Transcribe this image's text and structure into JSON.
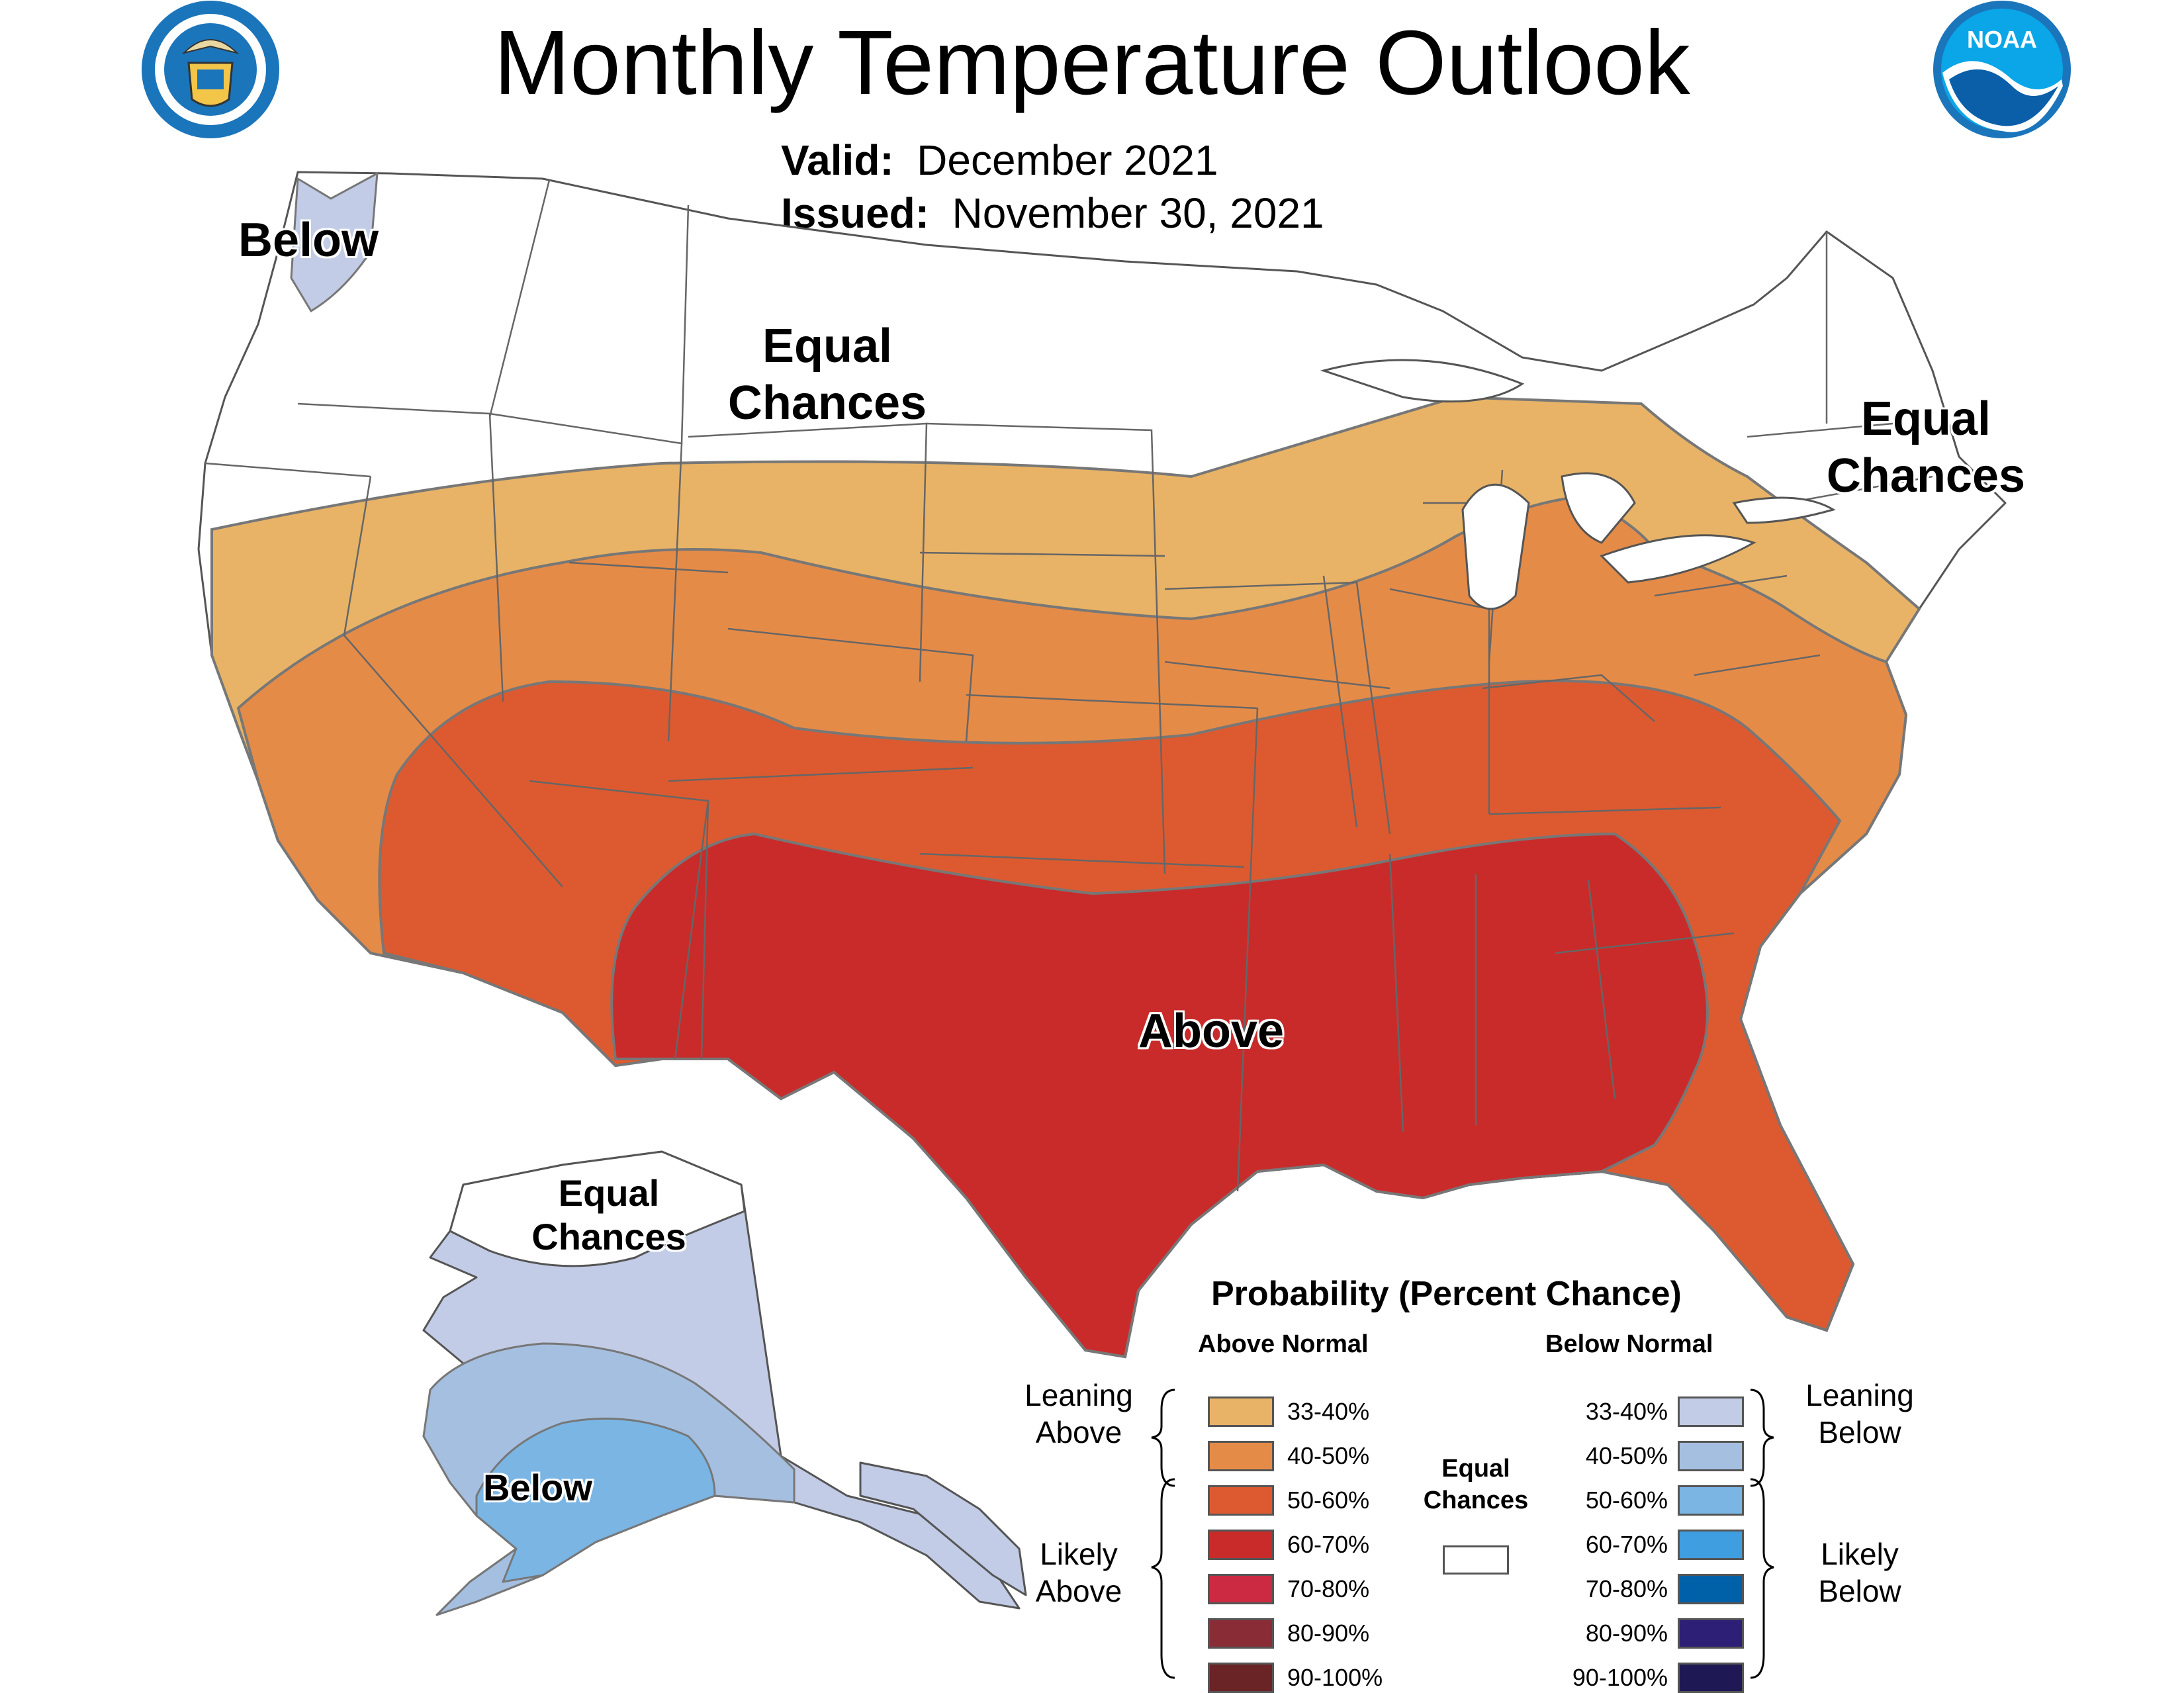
{
  "header": {
    "title": "Monthly Temperature Outlook",
    "valid_label": "Valid:",
    "valid_value": "December 2021",
    "issued_label": "Issued:",
    "issued_value": "November 30, 2021"
  },
  "logos": {
    "commerce_seal_icon": "us-department-of-commerce-seal-icon",
    "noaa_logo_icon": "noaa-logo-icon"
  },
  "map_labels": {
    "northwest": "Below",
    "north_central_line1": "Equal",
    "north_central_line2": "Chances",
    "northeast_line1": "Equal",
    "northeast_line2": "Chances",
    "south": "Above",
    "alaska_north_line1": "Equal",
    "alaska_north_line2": "Chances",
    "alaska_south": "Below"
  },
  "legend": {
    "title": "Probability (Percent Chance)",
    "above_head": "Above Normal",
    "below_head": "Below Normal",
    "leaning_above_1": "Leaning",
    "leaning_above_2": "Above",
    "likely_above_1": "Likely",
    "likely_above_2": "Above",
    "leaning_below_1": "Leaning",
    "leaning_below_2": "Below",
    "likely_below_1": "Likely",
    "likely_below_2": "Below",
    "equal_1": "Equal",
    "equal_2": "Chances",
    "above_ranges": [
      "33-40%",
      "40-50%",
      "50-60%",
      "60-70%",
      "70-80%",
      "80-90%",
      "90-100%"
    ],
    "below_ranges": [
      "33-40%",
      "40-50%",
      "50-60%",
      "60-70%",
      "70-80%",
      "80-90%",
      "90-100%"
    ],
    "above_colors": [
      "#e8b366",
      "#e58b48",
      "#dd5a30",
      "#c92b2a",
      "#cc2943",
      "#8a2c35",
      "#6a2426"
    ],
    "below_colors": [
      "#c2cce6",
      "#a5bfe0",
      "#7ab5e4",
      "#3e9ee0",
      "#0060a8",
      "#2d1f75",
      "#1e1854"
    ],
    "equal_color": "#ffffff"
  }
}
